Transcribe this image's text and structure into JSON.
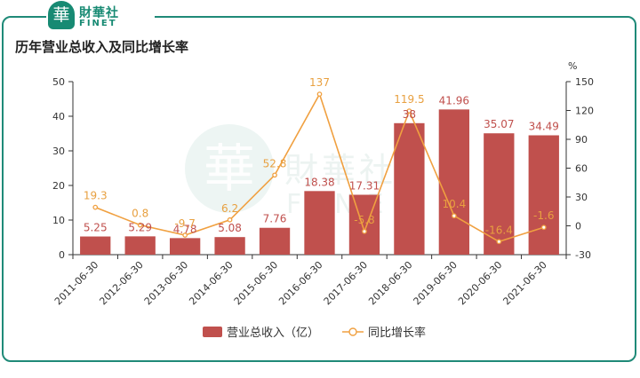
{
  "brand": {
    "mark": "華",
    "name_cn": "財華社",
    "name_en": "FINET"
  },
  "title": "历年营业总收入及同比增长率",
  "watermark": {
    "cn": "財華社",
    "en": "FINET",
    "mark": "華"
  },
  "colors": {
    "bar": "#c0504d",
    "line": "#f0a040",
    "bar_label": "#c0504d",
    "line_label": "#e8a040",
    "frame": "#1f8a78",
    "brand": "#178a73"
  },
  "chart_data": {
    "type": "bar",
    "title": "历年营业总收入及同比增长率",
    "categories": [
      "2011-06-30",
      "2012-06-30",
      "2013-06-30",
      "2014-06-30",
      "2015-06-30",
      "2016-06-30",
      "2017-06-30",
      "2018-06-30",
      "2019-06-30",
      "2020-06-30",
      "2021-06-30"
    ],
    "series": [
      {
        "name": "营业总收入（亿）",
        "type": "bar",
        "axis": "left",
        "values": [
          5.25,
          5.29,
          4.78,
          5.08,
          7.76,
          18.38,
          17.31,
          38,
          41.96,
          35.07,
          34.49
        ]
      },
      {
        "name": "同比增长率",
        "type": "line",
        "axis": "right",
        "values": [
          19.3,
          0.8,
          -9.7,
          6.2,
          52.8,
          137,
          -5.8,
          119.5,
          10.4,
          -16.4,
          -1.6
        ]
      }
    ],
    "y_left": {
      "min": 0,
      "max": 50,
      "ticks": [
        0,
        10,
        20,
        30,
        40,
        50
      ]
    },
    "y_right": {
      "label": "%",
      "min": -30,
      "max": 150,
      "ticks": [
        -30,
        0,
        30,
        60,
        90,
        120,
        150
      ]
    },
    "grid": false,
    "legend": "bottom"
  }
}
